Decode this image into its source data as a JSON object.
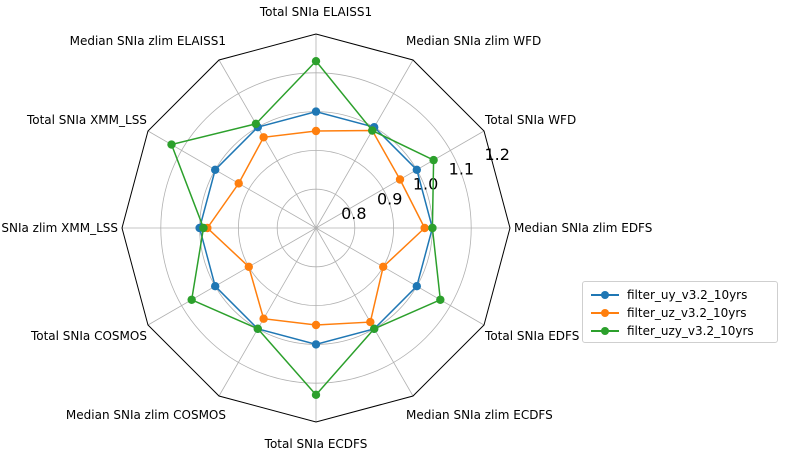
{
  "chart_data": {
    "type": "radar",
    "categories": [
      "Median SNIa zlim EDFS",
      "Total SNIa WFD",
      "Median SNIa zlim WFD",
      "Total SNIa ELAISS1",
      "Median SNIa zlim ELAISS1",
      "Total SNIa XMM_LSS",
      "Median SNIa zlim XMM_LSS",
      "Total SNIa COSMOS",
      "Median SNIa zlim COSMOS",
      "Total SNIa ECDFS",
      "Median SNIa zlim ECDFS",
      "Total SNIa EDFS"
    ],
    "radial_ticks": [
      "0.8",
      "0.9",
      "1.0",
      "1.1",
      "1.2"
    ],
    "rlim": [
      0.7,
      1.2
    ],
    "series": [
      {
        "name": "filter_uy_v3.2_10yrs",
        "color": "#1f77b4",
        "values": [
          1.0,
          1.0,
          1.0,
          1.0,
          1.0,
          1.0,
          1.0,
          1.0,
          1.0,
          1.0,
          1.0,
          1.0
        ]
      },
      {
        "name": "filter_uz_v3.2_10yrs",
        "color": "#ff7f0e",
        "values": [
          0.98,
          0.95,
          0.99,
          0.95,
          0.97,
          0.93,
          0.98,
          0.9,
          0.97,
          0.95,
          0.98,
          0.9
        ]
      },
      {
        "name": "filter_uzy_v3.2_10yrs",
        "color": "#2ca02c",
        "values": [
          1.0,
          1.05,
          0.99,
          1.13,
          1.01,
          1.13,
          0.99,
          1.07,
          1.0,
          1.13,
          1.0,
          1.07
        ]
      }
    ],
    "legend_position": "right",
    "grid": true
  }
}
